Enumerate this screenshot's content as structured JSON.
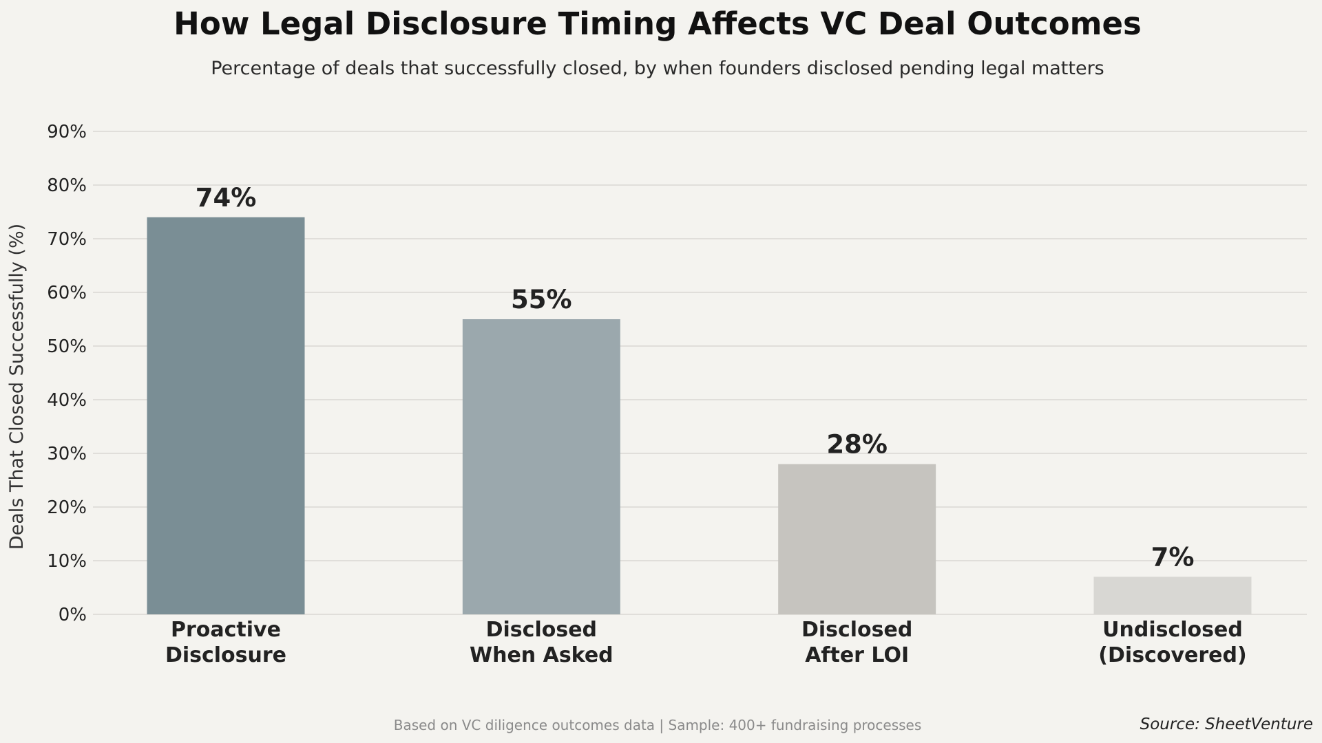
{
  "chart_data": {
    "type": "bar",
    "title": "How Legal Disclosure Timing Affects VC Deal Outcomes",
    "subtitle": "Percentage of deals that successfully closed, by when founders disclosed pending legal matters",
    "ylabel": "Deals That Closed Successfully (%)",
    "xlabel": "",
    "ylim": [
      0,
      90
    ],
    "yticks": [
      0,
      10,
      20,
      30,
      40,
      50,
      60,
      70,
      80,
      90
    ],
    "ytick_labels": [
      "0%",
      "10%",
      "20%",
      "30%",
      "40%",
      "50%",
      "60%",
      "70%",
      "80%",
      "90%"
    ],
    "grid": "horizontal",
    "categories": [
      [
        "Proactive",
        "Disclosure"
      ],
      [
        "Disclosed",
        "When Asked"
      ],
      [
        "Disclosed",
        "After LOI"
      ],
      [
        "Undisclosed",
        "(Discovered)"
      ]
    ],
    "values": [
      74,
      55,
      28,
      7
    ],
    "value_labels": [
      "74%",
      "55%",
      "28%",
      "7%"
    ],
    "colors": [
      "#7a8e95",
      "#9ba8ad",
      "#c6c4bf",
      "#d8d7d3"
    ],
    "footnote": "Based on VC diligence outcomes data  |  Sample: 400+ fundraising processes",
    "source": "Source: SheetVenture"
  }
}
